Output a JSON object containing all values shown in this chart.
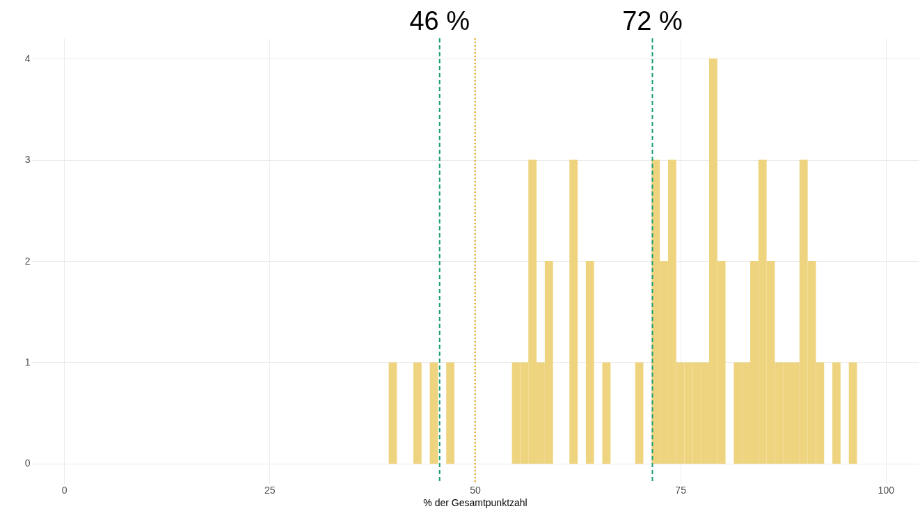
{
  "chart_data": {
    "type": "histogram",
    "xlabel": "% der Gesamtpunktzahl",
    "bins": [
      39.5,
      40.5,
      41.5,
      42.5,
      43.5,
      44.5,
      45.5,
      46.5,
      47.5,
      48.5,
      49.5,
      50.5,
      51.5,
      52.5,
      53.5,
      54.5,
      55.5,
      56.5,
      57.5,
      58.5,
      59.5,
      60.5,
      61.5,
      62.5,
      63.5,
      64.5,
      65.5,
      66.5,
      67.5,
      68.5,
      69.5,
      70.5,
      71.5,
      72.5,
      73.5,
      74.5,
      75.5,
      76.5,
      77.5,
      78.5,
      79.5,
      80.5,
      81.5,
      82.5,
      83.5,
      84.5,
      85.5,
      86.5,
      87.5,
      88.5,
      89.5,
      90.5,
      91.5,
      92.5,
      93.5,
      94.5,
      95.5,
      96.5
    ],
    "values": [
      1,
      0,
      0,
      1,
      0,
      1,
      0,
      1,
      0,
      0,
      0,
      0,
      0,
      0,
      0,
      1,
      1,
      3,
      1,
      2,
      0,
      0,
      3,
      0,
      2,
      0,
      1,
      0,
      0,
      0,
      1,
      0,
      3,
      2,
      3,
      1,
      1,
      1,
      1,
      4,
      2,
      0,
      1,
      1,
      2,
      3,
      2,
      1,
      1,
      1,
      3,
      2,
      1,
      0,
      1,
      0,
      1
    ],
    "color": "#efd480",
    "xlim": [
      -4,
      104
    ],
    "xticks": [
      0,
      25,
      50,
      75,
      100
    ],
    "ylim": [
      -0.2,
      4.2
    ],
    "yticks": [
      0,
      1,
      2,
      3,
      4
    ],
    "grid": true,
    "ref_lines": [
      {
        "axis": "x",
        "value": 45.7,
        "label": "46 %",
        "color": "#1b9e77",
        "line_style": "dashed"
      },
      {
        "axis": "x",
        "value": 71.6,
        "label": "72 %",
        "color": "#1b9e77",
        "line_style": "dashed"
      },
      {
        "axis": "x",
        "value": 50,
        "color": "#e69f00",
        "line_style": "dotted"
      }
    ]
  }
}
